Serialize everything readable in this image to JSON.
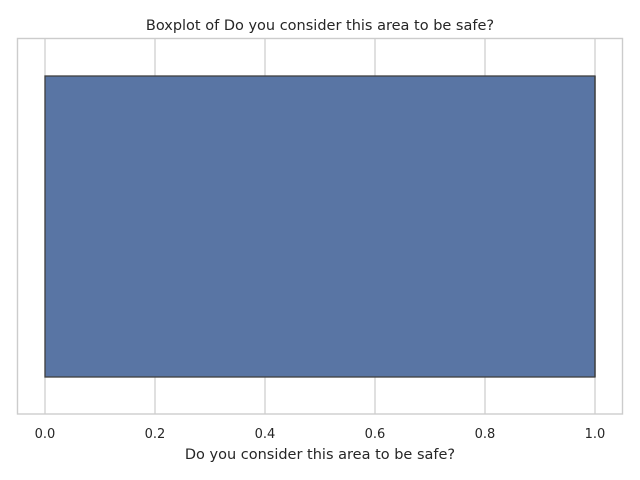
{
  "chart_data": {
    "type": "boxplot",
    "orientation": "horizontal",
    "title": "Boxplot of Do you consider this area to be safe?",
    "xlabel": "Do you consider this area to be safe?",
    "ylabel": "",
    "xlim": [
      -0.05,
      1.05
    ],
    "xticks": [
      0.0,
      0.2,
      0.4,
      0.6,
      0.8,
      1.0
    ],
    "xtick_labels": [
      "0.0",
      "0.2",
      "0.4",
      "0.6",
      "0.8",
      "1.0"
    ],
    "grid": true,
    "box": {
      "min": 0.0,
      "q1": 0.0,
      "median": 1.0,
      "q3": 1.0,
      "max": 1.0
    },
    "colors": {
      "box_fill": "#5975a4",
      "box_edge": "#3f3f3f",
      "grid": "#cccccc",
      "frame": "#cccccc",
      "text": "#262626"
    }
  }
}
